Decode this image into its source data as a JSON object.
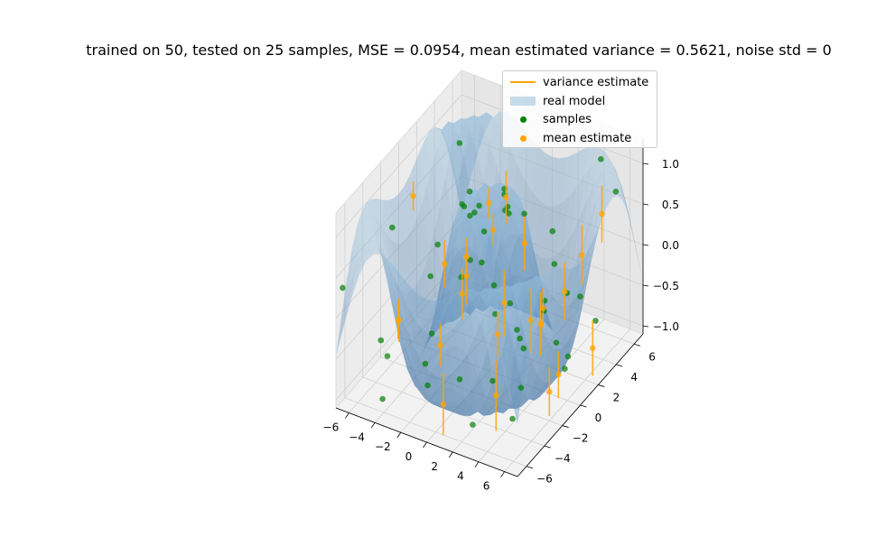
{
  "chart_data": {
    "type": "3d-surface-scatter",
    "title": "trained on 50, tested on 25 samples, MSE = 0.0954, mean estimated variance = 0.5621, noise std = 0",
    "x_ticks": [
      "−6",
      "−4",
      "−2",
      "0",
      "2",
      "4",
      "6"
    ],
    "y_ticks": [
      "−6",
      "−4",
      "−2",
      "0",
      "2",
      "4",
      "6"
    ],
    "z_ticks": [
      "−1.0",
      "−0.5",
      "0.0",
      "0.5",
      "1.0"
    ],
    "xlim": [
      -7,
      7
    ],
    "ylim": [
      -7,
      7
    ],
    "zlim": [
      -1.1,
      1.3
    ],
    "legend": {
      "placement": "top-right",
      "entries": [
        {
          "label": "variance estimate",
          "kind": "line",
          "color": "#ffa500"
        },
        {
          "label": "real model",
          "kind": "patch",
          "color": "#1f77b4"
        },
        {
          "label": "samples",
          "kind": "marker",
          "color": "#008000"
        },
        {
          "label": "mean estimate",
          "kind": "marker",
          "color": "#ffa500"
        }
      ]
    },
    "real_model": {
      "function": "sin(sqrt(x^2 + y^2))",
      "color": "#1f77b4"
    },
    "samples": [
      [
        -6.8,
        6.5,
        0.48
      ],
      [
        -6.2,
        5.9,
        -0.16
      ],
      [
        -5.5,
        6.8,
        -0.25
      ],
      [
        -5.0,
        4.1,
        -0.76
      ],
      [
        -4.4,
        5.5,
        -0.72
      ],
      [
        -3.7,
        3.2,
        -0.36
      ],
      [
        -3.0,
        6.0,
        0.14
      ],
      [
        -2.4,
        1.8,
        0.48
      ],
      [
        -1.8,
        4.9,
        -0.99
      ],
      [
        -1.1,
        -0.6,
        0.82
      ],
      [
        -0.4,
        2.6,
        0.57
      ],
      [
        0.3,
        6.6,
        -0.19
      ],
      [
        0.9,
        -1.9,
        0.91
      ],
      [
        1.5,
        3.9,
        -0.76
      ],
      [
        2.2,
        0.7,
        0.88
      ],
      [
        2.8,
        -3.7,
        -0.59
      ],
      [
        3.4,
        5.2,
        -0.63
      ],
      [
        4.1,
        -2.4,
        -0.76
      ],
      [
        4.7,
        1.6,
        -0.99
      ],
      [
        5.3,
        -5.1,
        -0.73
      ],
      [
        5.9,
        3.3,
        -0.54
      ],
      [
        6.6,
        -0.9,
        0.37
      ],
      [
        -6.6,
        -1.3,
        0.43
      ],
      [
        -6.0,
        2.9,
        -0.27
      ],
      [
        -5.4,
        -4.3,
        -0.51
      ],
      [
        -4.8,
        0.5,
        -0.99
      ],
      [
        -4.1,
        -6.0,
        -0.94
      ],
      [
        -3.5,
        -2.1,
        -0.96
      ],
      [
        -2.9,
        4.7,
        -0.81
      ],
      [
        -2.2,
        -3.4,
        0.36
      ],
      [
        -1.6,
        0.1,
        1.0
      ],
      [
        -0.9,
        -5.6,
        -0.63
      ],
      [
        -0.3,
        2.1,
        0.86
      ],
      [
        0.4,
        -3.9,
        -0.69
      ],
      [
        1.0,
        5.8,
        -0.45
      ],
      [
        1.7,
        -0.3,
        0.98
      ],
      [
        2.3,
        -5.2,
        -0.97
      ],
      [
        3.0,
        3.1,
        -0.96
      ],
      [
        3.6,
        -1.4,
        -0.43
      ],
      [
        4.3,
        6.2,
        0.99
      ],
      [
        4.9,
        -3.7,
        0.06
      ],
      [
        5.5,
        0.8,
        -0.69
      ],
      [
        6.2,
        -5.9,
        0.52
      ],
      [
        6.7,
        4.4,
        0.96
      ],
      [
        -6.9,
        -6.4,
        0.31
      ],
      [
        -5.8,
        -3.0,
        -0.89
      ],
      [
        -1.2,
        -1.1,
        0.99
      ],
      [
        0.8,
        0.6,
        0.85
      ],
      [
        2.6,
        2.4,
        -0.38
      ],
      [
        5.0,
        -6.6,
        0.73
      ]
    ],
    "mean_estimates": [
      [
        -6.5,
        0.9,
        0.55,
        0.18
      ],
      [
        -5.2,
        -2.6,
        -0.46,
        0.27
      ],
      [
        -4.6,
        3.6,
        -0.88,
        0.31
      ],
      [
        -3.8,
        -4.7,
        -0.12,
        0.22
      ],
      [
        -3.1,
        1.9,
        -0.36,
        0.35
      ],
      [
        -2.5,
        -1.4,
        0.24,
        0.29
      ],
      [
        -1.9,
        4.4,
        -0.93,
        0.41
      ],
      [
        -1.3,
        -3.6,
        -0.41,
        0.26
      ],
      [
        -0.6,
        0.8,
        0.83,
        0.19
      ],
      [
        0.1,
        -5.3,
        -0.84,
        0.38
      ],
      [
        0.7,
        2.9,
        0.15,
        0.33
      ],
      [
        1.4,
        -1.6,
        0.92,
        0.21
      ],
      [
        2.0,
        5.5,
        -0.69,
        0.36
      ],
      [
        2.7,
        -3.0,
        -0.11,
        0.28
      ],
      [
        3.3,
        1.2,
        -0.28,
        0.25
      ],
      [
        3.9,
        -4.9,
        -0.55,
        0.44
      ],
      [
        4.5,
        3.8,
        0.12,
        0.37
      ],
      [
        5.1,
        -0.7,
        -0.96,
        0.3
      ],
      [
        5.7,
        -3.6,
        0.32,
        0.4
      ],
      [
        6.3,
        2.4,
        -0.74,
        0.34
      ],
      [
        6.7,
        -2.0,
        -0.49,
        0.29
      ],
      [
        -0.2,
        -2.3,
        0.58,
        0.24
      ],
      [
        1.1,
        4.1,
        -0.97,
        0.39
      ],
      [
        -2.8,
        5.9,
        0.13,
        0.32
      ],
      [
        4.8,
        5.6,
        0.42,
        0.35
      ]
    ]
  }
}
